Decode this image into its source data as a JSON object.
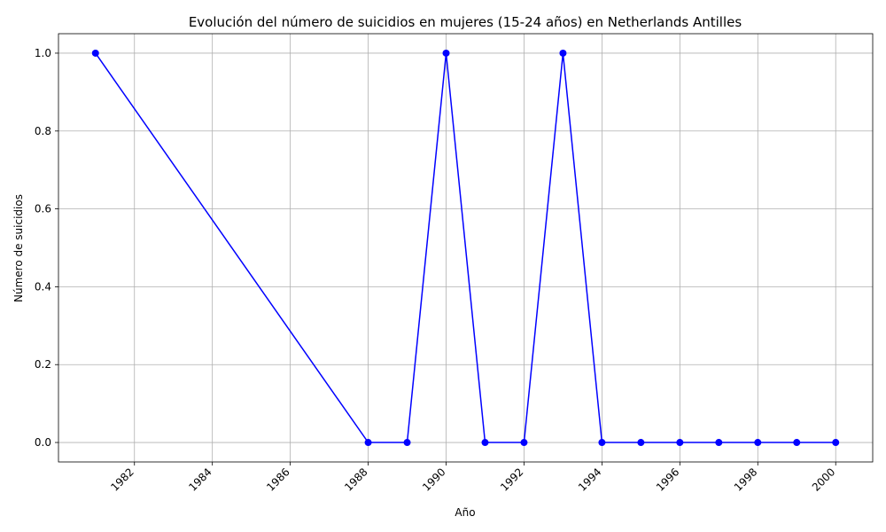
{
  "chart_data": {
    "type": "line",
    "title": "Evolución del número de suicidios en mujeres (15-24 años) en Netherlands Antilles",
    "xlabel": "Año",
    "ylabel": "Número de suicidios",
    "x": [
      1981,
      1988,
      1989,
      1990,
      1991,
      1992,
      1993,
      1994,
      1995,
      1996,
      1997,
      1998,
      1999,
      2000
    ],
    "y": [
      1,
      0,
      0,
      1,
      0,
      0,
      1,
      0,
      0,
      0,
      0,
      0,
      0,
      0
    ],
    "xlim": [
      1980.05,
      2000.95
    ],
    "ylim": [
      -0.05,
      1.05
    ],
    "xticks": [
      1982,
      1984,
      1986,
      1988,
      1990,
      1992,
      1994,
      1996,
      1998,
      2000
    ],
    "xtick_labels": [
      "1982",
      "1984",
      "1986",
      "1988",
      "1990",
      "1992",
      "1994",
      "1996",
      "1998",
      "2000"
    ],
    "yticks": [
      0.0,
      0.2,
      0.4,
      0.6,
      0.8,
      1.0
    ],
    "ytick_labels": [
      "0.0",
      "0.2",
      "0.4",
      "0.6",
      "0.8",
      "1.0"
    ],
    "grid": true,
    "line_color": "#0000ff",
    "marker": "circle"
  }
}
